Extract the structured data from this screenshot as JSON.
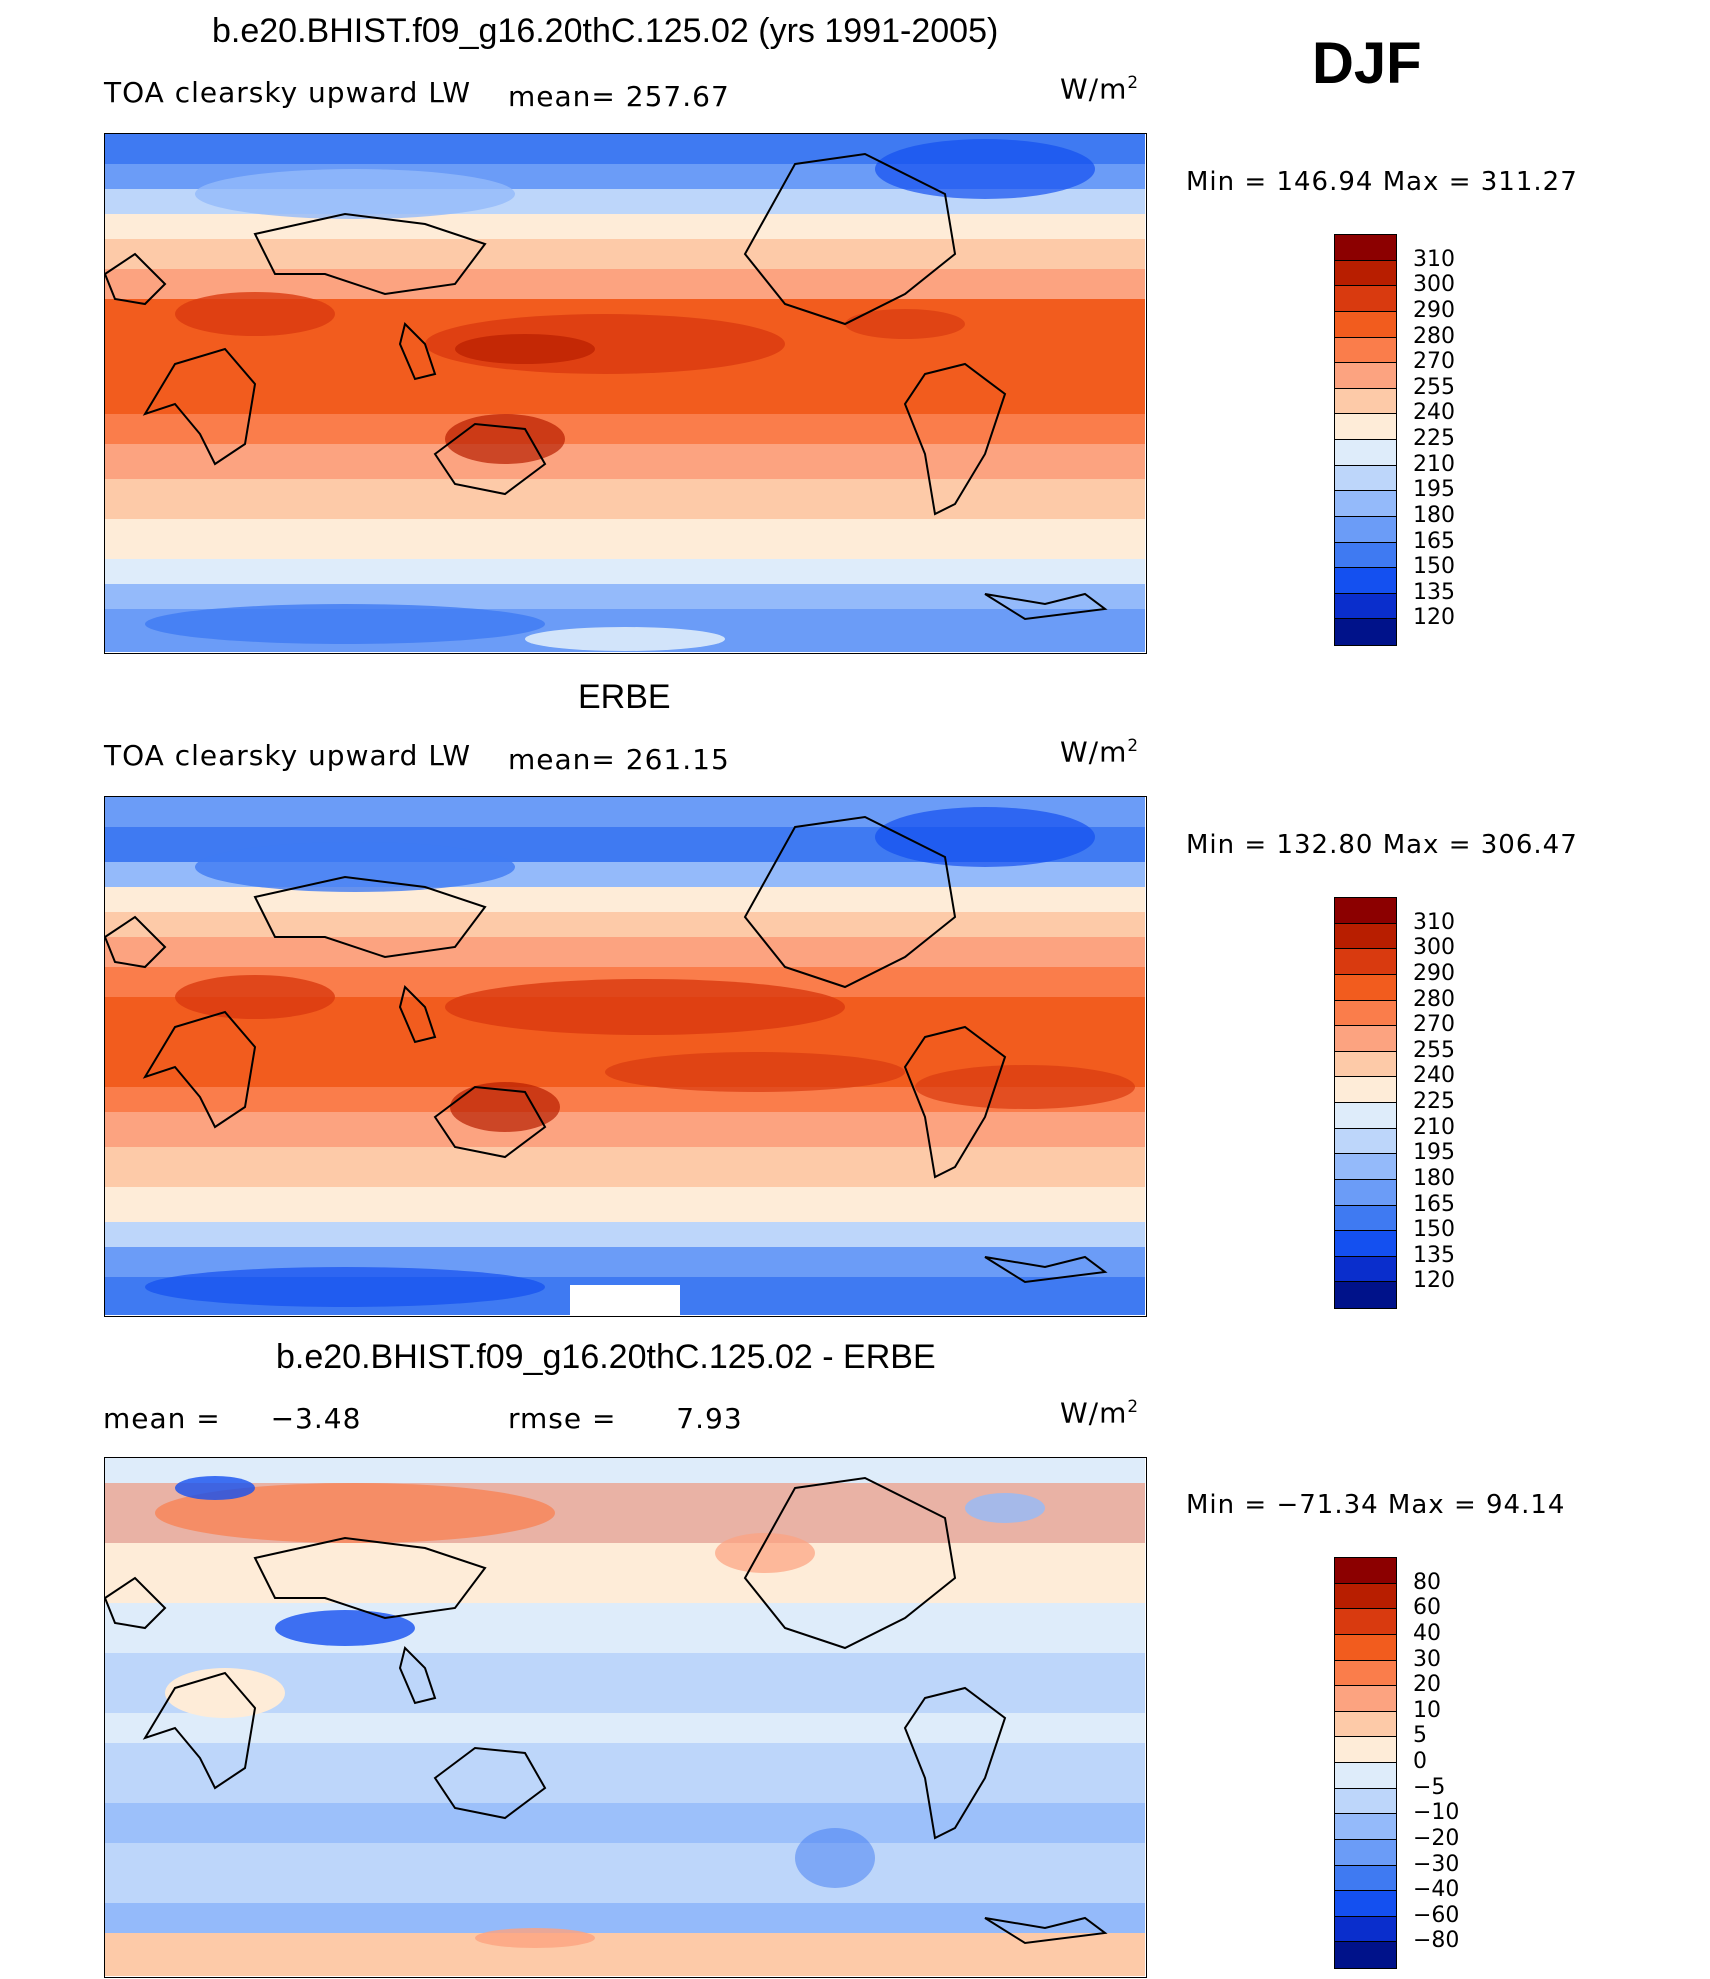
{
  "season": "DJF",
  "units_base": "W/m",
  "units_exp": "2",
  "panels": [
    {
      "title": "b.e20.BHIST.f09_g16.20thC.125.02 (yrs 1991-2005)",
      "variable": "TOA clearsky upward LW",
      "stat_label": "mean=",
      "stat_value": "257.67",
      "minmax": "Min  =  146.94  Max  =  311.27",
      "colorbar_labels": [
        "310",
        "300",
        "290",
        "280",
        "270",
        "255",
        "240",
        "225",
        "210",
        "195",
        "180",
        "165",
        "150",
        "135",
        "120"
      ],
      "colors": [
        "#8c0000",
        "#b81e00",
        "#d93a0f",
        "#f25c1e",
        "#fa7d4b",
        "#fca380",
        "#fdcaa8",
        "#feecd8",
        "#deecfa",
        "#bdd6fa",
        "#94bafa",
        "#6b9cf7",
        "#3f7af2",
        "#1450f0",
        "#0a2ecc",
        "#00128a"
      ]
    },
    {
      "title": "ERBE",
      "variable": "TOA clearsky upward LW",
      "stat_label": "mean=",
      "stat_value": "261.15",
      "minmax": "Min  =  132.80  Max  =  306.47",
      "colorbar_labels": [
        "310",
        "300",
        "290",
        "280",
        "270",
        "255",
        "240",
        "225",
        "210",
        "195",
        "180",
        "165",
        "150",
        "135",
        "120"
      ],
      "colors": [
        "#8c0000",
        "#b81e00",
        "#d93a0f",
        "#f25c1e",
        "#fa7d4b",
        "#fca380",
        "#fdcaa8",
        "#feecd8",
        "#deecfa",
        "#bdd6fa",
        "#94bafa",
        "#6b9cf7",
        "#3f7af2",
        "#1450f0",
        "#0a2ecc",
        "#00128a"
      ]
    },
    {
      "title": "b.e20.BHIST.f09_g16.20thC.125.02 - ERBE",
      "mean_label": "mean  =",
      "mean_value": "−3.48",
      "rmse_label": "rmse  =",
      "rmse_value": "7.93",
      "minmax": "Min  =  −71.34  Max  =   94.14",
      "colorbar_labels": [
        "80",
        "60",
        "40",
        "30",
        "20",
        "10",
        "5",
        "0",
        "−5",
        "−10",
        "−20",
        "−30",
        "−40",
        "−60",
        "−80"
      ],
      "colors": [
        "#8c0000",
        "#b81e00",
        "#d93a0f",
        "#f25c1e",
        "#fa7d4b",
        "#fca380",
        "#fdcaa8",
        "#feecd8",
        "#deecfa",
        "#bdd6fa",
        "#94bafa",
        "#6b9cf7",
        "#3f7af2",
        "#1450f0",
        "#0a2ecc",
        "#00128a"
      ]
    }
  ]
}
